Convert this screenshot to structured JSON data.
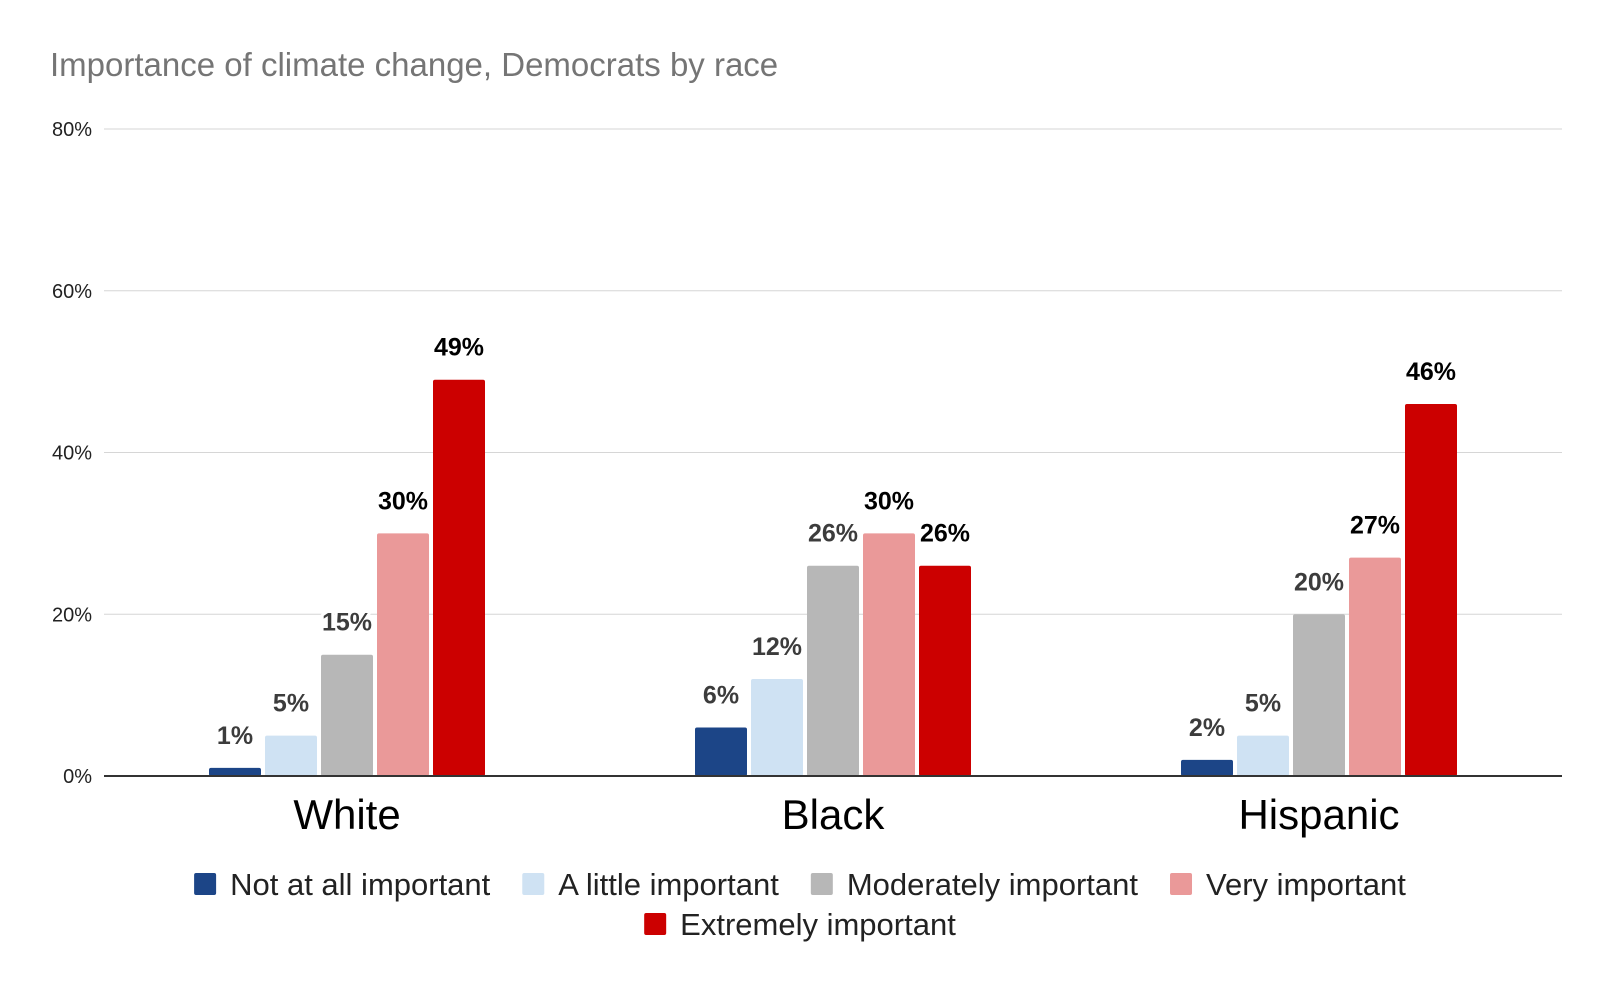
{
  "chart_data": {
    "type": "bar",
    "title": "Importance of climate change, Democrats by race",
    "xlabel": "",
    "ylabel": "",
    "ylim": [
      0,
      80
    ],
    "yticks": [
      0,
      20,
      40,
      60,
      80
    ],
    "ytick_labels": [
      "0%",
      "20%",
      "40%",
      "60%",
      "80%"
    ],
    "value_suffix": "%",
    "grid": true,
    "legend_position": "bottom",
    "categories": [
      "White",
      "Black",
      "Hispanic"
    ],
    "series": [
      {
        "name": "Not at all important",
        "color": "#1c4587",
        "values": [
          1,
          6,
          2
        ]
      },
      {
        "name": "A little important",
        "color": "#cfe2f3",
        "values": [
          5,
          12,
          5
        ]
      },
      {
        "name": "Moderately important",
        "color": "#b7b7b7",
        "values": [
          15,
          26,
          20
        ]
      },
      {
        "name": "Very important",
        "color": "#ea9999",
        "values": [
          30,
          30,
          27
        ]
      },
      {
        "name": "Extremely important",
        "color": "#cc0000",
        "values": [
          49,
          26,
          46
        ]
      }
    ],
    "label_colors": [
      "#3c3c3c",
      "#3c3c3c",
      "#3c3c3c",
      "#000000",
      "#000000"
    ]
  }
}
